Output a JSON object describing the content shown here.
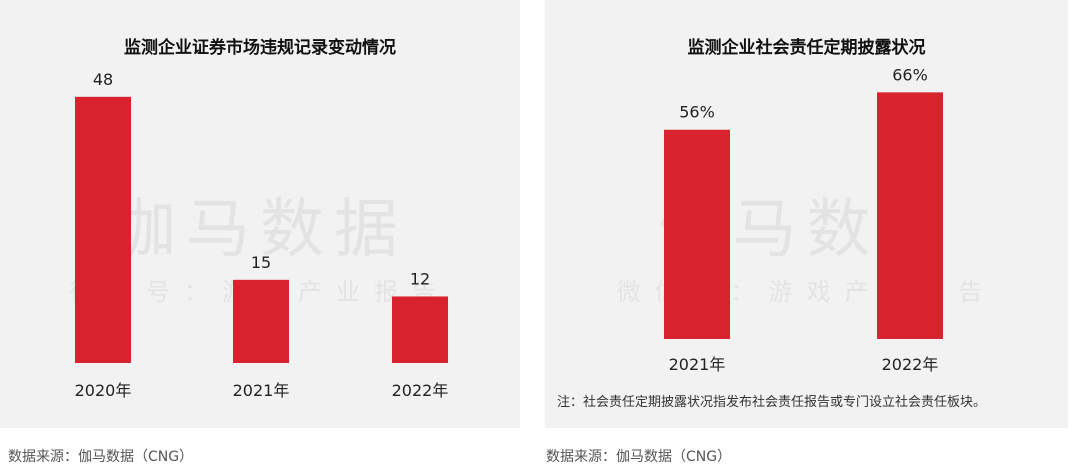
{
  "watermark": {
    "main": "伽马数据",
    "sub": "微信号：游戏产业报告"
  },
  "colors": {
    "bar": "#d8232f",
    "panel_bg": "#f2f2f2"
  },
  "chart_data": [
    {
      "type": "bar",
      "title": "监测企业证券市场违规记录变动情况",
      "categories": [
        "2020年",
        "2021年",
        "2022年"
      ],
      "values": [
        48,
        15,
        12
      ],
      "value_labels": [
        "48",
        "15",
        "12"
      ],
      "ylim": [
        0,
        55
      ],
      "grid": false
    },
    {
      "type": "bar",
      "title": "监测企业社会责任定期披露状况",
      "categories": [
        "2021年",
        "2022年"
      ],
      "values": [
        56,
        66
      ],
      "value_labels": [
        "56%",
        "66%"
      ],
      "ylim": [
        0,
        76
      ],
      "grid": false,
      "note": "注：社会责任定期披露状况指发布社会责任报告或专门设立社会责任板块。"
    }
  ],
  "sources": {
    "left": "数据来源：伽马数据（CNG）",
    "right": "数据来源：伽马数据（CNG）"
  }
}
